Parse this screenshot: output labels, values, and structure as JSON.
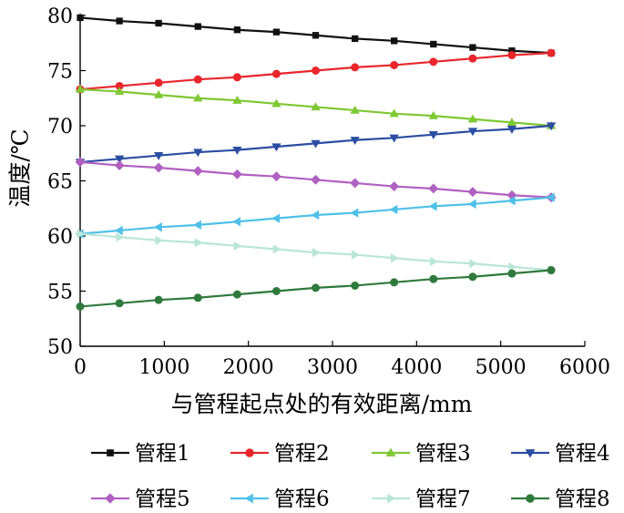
{
  "chart_data": {
    "type": "line",
    "xlabel": "与管程起点处的有效距离/mm",
    "ylabel": "温度/℃",
    "xlim": [
      0,
      6000
    ],
    "ylim": [
      50,
      80
    ],
    "xticks": [
      "0",
      "1000",
      "2000",
      "3000",
      "4000",
      "5000",
      "6000"
    ],
    "yticks": [
      "50",
      "55",
      "60",
      "65",
      "70",
      "75",
      "80"
    ],
    "x": [
      0,
      467,
      933,
      1400,
      1867,
      2333,
      2800,
      3267,
      3733,
      4200,
      4667,
      5133,
      5600
    ],
    "legend_position": "bottom",
    "grid": false,
    "series": [
      {
        "name": "管程1",
        "marker": "square",
        "color": "#111111",
        "values": [
          79.8,
          79.5,
          79.3,
          79.0,
          78.7,
          78.5,
          78.2,
          77.9,
          77.7,
          77.4,
          77.1,
          76.8,
          76.6
        ]
      },
      {
        "name": "管程2",
        "marker": "circle",
        "color": "#e8262b",
        "values": [
          73.3,
          73.6,
          73.9,
          74.2,
          74.4,
          74.7,
          75.0,
          75.3,
          75.5,
          75.8,
          76.1,
          76.4,
          76.6
        ]
      },
      {
        "name": "管程3",
        "marker": "triangle-up",
        "color": "#7ec832",
        "values": [
          73.3,
          73.1,
          72.8,
          72.5,
          72.3,
          72.0,
          71.7,
          71.4,
          71.1,
          70.9,
          70.6,
          70.3,
          70.0
        ]
      },
      {
        "name": "管程4",
        "marker": "triangle-down",
        "color": "#2b4ea2",
        "values": [
          66.7,
          67.0,
          67.3,
          67.6,
          67.8,
          68.1,
          68.4,
          68.7,
          68.9,
          69.2,
          69.5,
          69.7,
          70.0
        ]
      },
      {
        "name": "管程5",
        "marker": "diamond",
        "color": "#b060c0",
        "values": [
          66.7,
          66.4,
          66.2,
          65.9,
          65.6,
          65.4,
          65.1,
          64.8,
          64.5,
          64.3,
          64.0,
          63.7,
          63.5
        ]
      },
      {
        "name": "管程6",
        "marker": "triangle-left",
        "color": "#4fc0e8",
        "values": [
          60.2,
          60.5,
          60.8,
          61.0,
          61.3,
          61.6,
          61.9,
          62.1,
          62.4,
          62.7,
          62.9,
          63.2,
          63.5
        ]
      },
      {
        "name": "管程7",
        "marker": "triangle-right",
        "color": "#b8e6d6",
        "values": [
          60.2,
          59.9,
          59.6,
          59.4,
          59.1,
          58.8,
          58.5,
          58.3,
          58.0,
          57.7,
          57.5,
          57.2,
          56.9
        ]
      },
      {
        "name": "管程8",
        "marker": "circle",
        "color": "#2e7a3c",
        "values": [
          53.6,
          53.9,
          54.2,
          54.4,
          54.7,
          55.0,
          55.3,
          55.5,
          55.8,
          56.1,
          56.3,
          56.6,
          56.9
        ]
      }
    ]
  }
}
